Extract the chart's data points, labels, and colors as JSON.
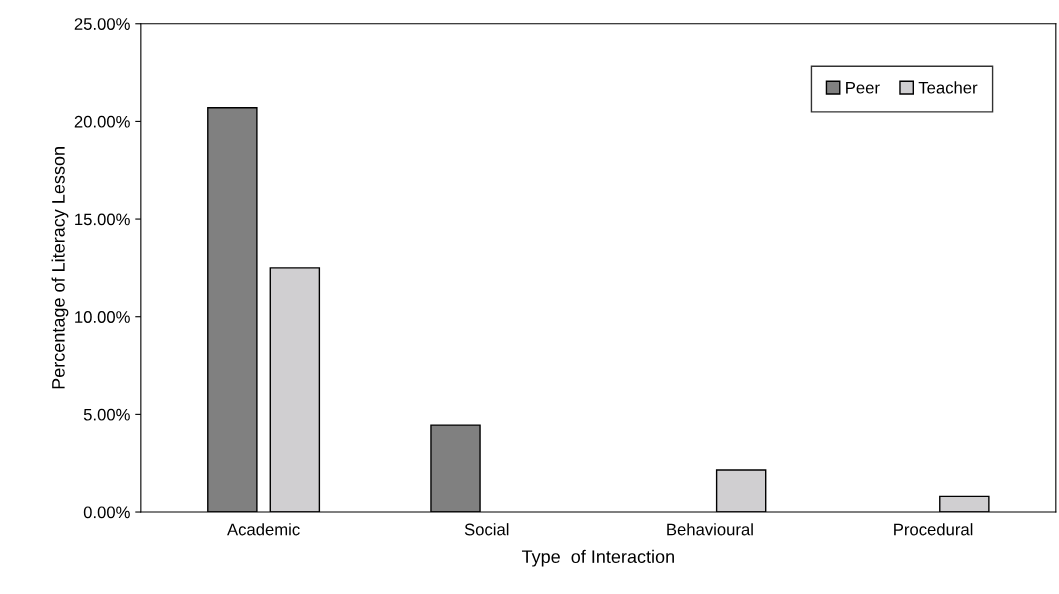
{
  "chart_data": {
    "type": "bar",
    "xlabel": "Type  of Interaction",
    "ylabel": "Percentage of Literacy Lesson",
    "categories": [
      "Academic",
      "Social",
      "Behavioural",
      "Procedural"
    ],
    "series": [
      {
        "name": "Peer",
        "color": "#808080",
        "values": [
          20.7,
          4.45,
          0,
          0
        ]
      },
      {
        "name": "Teacher",
        "color": "#d0cfd1",
        "values": [
          12.5,
          0,
          2.15,
          0.8
        ]
      }
    ],
    "ylim": [
      0,
      25
    ],
    "yticks": [
      {
        "value": 0,
        "label": "0.00%"
      },
      {
        "value": 5,
        "label": "5.00%"
      },
      {
        "value": 10,
        "label": "10.00%"
      },
      {
        "value": 15,
        "label": "15.00%"
      },
      {
        "value": 20,
        "label": "20.00%"
      },
      {
        "value": 25,
        "label": "25.00%"
      }
    ],
    "grid": false,
    "legend": "top right"
  }
}
